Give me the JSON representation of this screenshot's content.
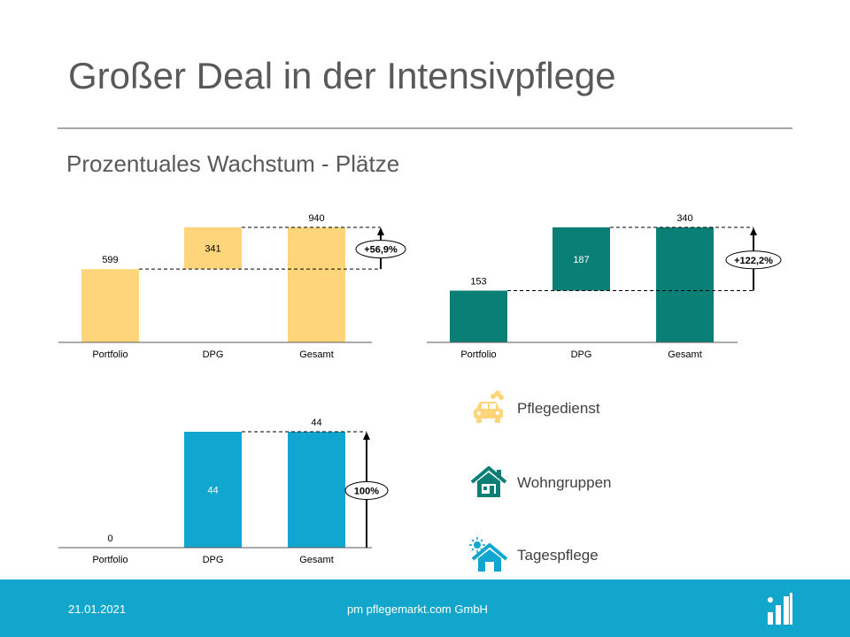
{
  "slide": {
    "title": "Großer Deal in der Intensivpflege",
    "subtitle": "Prozentuales Wachstum - Plätze"
  },
  "colors": {
    "pflegedienst": "#fed57b",
    "wohngruppen": "#0a7f75",
    "tagespflege": "#10a6d0",
    "footer": "#13a6cd"
  },
  "chart_data": [
    {
      "type": "bar",
      "subtype": "waterfall",
      "categories": [
        "Portfolio",
        "DPG",
        "Gesamt"
      ],
      "values": [
        599,
        341,
        940
      ],
      "growth_label": "+56,9%",
      "ylim": [
        0,
        1000
      ],
      "grid": false
    },
    {
      "type": "bar",
      "subtype": "waterfall",
      "categories": [
        "Portfolio",
        "DPG",
        "Gesamt"
      ],
      "values": [
        153,
        187,
        340
      ],
      "growth_label": "+122,2%",
      "ylim": [
        0,
        400
      ],
      "grid": false
    },
    {
      "type": "bar",
      "subtype": "waterfall",
      "categories": [
        "Portfolio",
        "DPG",
        "Gesamt"
      ],
      "values": [
        0,
        44,
        44
      ],
      "growth_label": "100%",
      "ylim": [
        0,
        50
      ],
      "grid": false
    }
  ],
  "legend": [
    {
      "label": "Pflegedienst",
      "icon": "car-icon"
    },
    {
      "label": "Wohngruppen",
      "icon": "house-icon"
    },
    {
      "label": "Tagespflege",
      "icon": "house-sun-icon"
    }
  ],
  "footer": {
    "date": "21.01.2021",
    "company": "pm pflegemarkt.com GmbH"
  }
}
